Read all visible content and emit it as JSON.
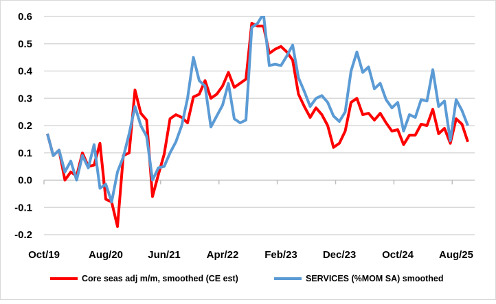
{
  "chart_data": {
    "type": "line",
    "title": "",
    "xlabel": "",
    "ylabel": "",
    "ylim": [
      -0.2,
      0.6
    ],
    "yticks": [
      "-0.2",
      "-0.1",
      "0.0",
      "0.1",
      "0.2",
      "0.3",
      "0.4",
      "0.5",
      "0.6"
    ],
    "xtick_labels": [
      "Oct/19",
      "Aug/20",
      "Jun/21",
      "Apr/22",
      "Feb/23",
      "Dec/23",
      "Oct/24",
      "Aug/25"
    ],
    "x_start": "Oct/19",
    "x_frequency": "monthly",
    "grid": true,
    "legend_position": "bottom",
    "series": [
      {
        "name": "Core seas adj m/m, smoothed (CE est)",
        "color": "#ff0000",
        "values": [
          0.17,
          0.09,
          0.11,
          0.0,
          0.03,
          0.015,
          0.1,
          0.05,
          0.055,
          0.135,
          -0.07,
          -0.08,
          -0.17,
          0.09,
          0.1,
          0.33,
          0.245,
          0.22,
          -0.06,
          0.02,
          0.095,
          0.225,
          0.24,
          0.23,
          0.21,
          0.305,
          0.315,
          0.365,
          0.3,
          0.315,
          0.345,
          0.395,
          0.34,
          0.355,
          0.37,
          0.575,
          0.565,
          0.565,
          0.465,
          0.48,
          0.49,
          0.47,
          0.44,
          0.315,
          0.27,
          0.23,
          0.265,
          0.24,
          0.2,
          0.12,
          0.135,
          0.18,
          0.285,
          0.3,
          0.24,
          0.245,
          0.22,
          0.245,
          0.21,
          0.18,
          0.185,
          0.13,
          0.165,
          0.165,
          0.205,
          0.2,
          0.26,
          0.17,
          0.19,
          0.135,
          0.225,
          0.205,
          0.14
        ]
      },
      {
        "name": "SERVICES (%MOM SA) smoothed",
        "color": "#5b9bd5",
        "values": [
          0.17,
          0.09,
          0.11,
          0.03,
          0.07,
          0.0,
          0.09,
          0.045,
          0.13,
          -0.03,
          -0.015,
          -0.08,
          0.03,
          0.085,
          0.17,
          0.27,
          0.2,
          0.16,
          0.0,
          0.045,
          0.05,
          0.1,
          0.14,
          0.2,
          0.3,
          0.45,
          0.365,
          0.345,
          0.195,
          0.235,
          0.275,
          0.355,
          0.225,
          0.21,
          0.22,
          0.56,
          0.575,
          0.61,
          0.42,
          0.425,
          0.42,
          0.455,
          0.495,
          0.375,
          0.325,
          0.27,
          0.3,
          0.31,
          0.285,
          0.235,
          0.215,
          0.25,
          0.4,
          0.47,
          0.395,
          0.415,
          0.335,
          0.355,
          0.295,
          0.265,
          0.285,
          0.18,
          0.24,
          0.23,
          0.295,
          0.29,
          0.405,
          0.27,
          0.29,
          0.145,
          0.295,
          0.255,
          0.2
        ]
      }
    ]
  }
}
